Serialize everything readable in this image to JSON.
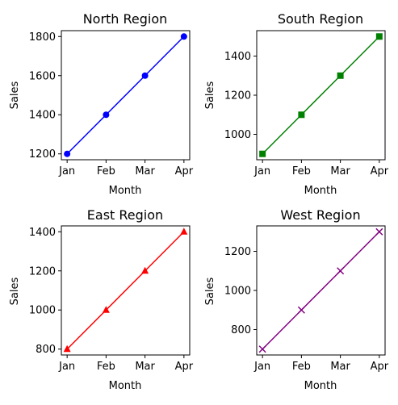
{
  "chart_data": [
    {
      "type": "line",
      "title": "North Region",
      "xlabel": "Month",
      "ylabel": "Sales",
      "categories": [
        "Jan",
        "Feb",
        "Mar",
        "Apr"
      ],
      "values": [
        1200,
        1400,
        1600,
        1800
      ],
      "yticks": [
        1200,
        1400,
        1600,
        1800
      ],
      "ylim": [
        1170,
        1830
      ],
      "color": "#0000ff",
      "marker": "circle",
      "grid": false
    },
    {
      "type": "line",
      "title": "South Region",
      "xlabel": "Month",
      "ylabel": "Sales",
      "categories": [
        "Jan",
        "Feb",
        "Mar",
        "Apr"
      ],
      "values": [
        900,
        1100,
        1300,
        1500
      ],
      "yticks": [
        1000,
        1200,
        1400
      ],
      "ylim": [
        870,
        1530
      ],
      "color": "#008000",
      "marker": "square",
      "grid": false
    },
    {
      "type": "line",
      "title": "East Region",
      "xlabel": "Month",
      "ylabel": "Sales",
      "categories": [
        "Jan",
        "Feb",
        "Mar",
        "Apr"
      ],
      "values": [
        800,
        1000,
        1200,
        1400
      ],
      "yticks": [
        800,
        1000,
        1200,
        1400
      ],
      "ylim": [
        770,
        1430
      ],
      "color": "#ff0000",
      "marker": "triangle",
      "grid": false
    },
    {
      "type": "line",
      "title": "West Region",
      "xlabel": "Month",
      "ylabel": "Sales",
      "categories": [
        "Jan",
        "Feb",
        "Mar",
        "Apr"
      ],
      "values": [
        700,
        900,
        1100,
        1300
      ],
      "yticks": [
        800,
        1000,
        1200
      ],
      "ylim": [
        670,
        1330
      ],
      "color": "#800080",
      "marker": "x",
      "grid": false
    }
  ]
}
